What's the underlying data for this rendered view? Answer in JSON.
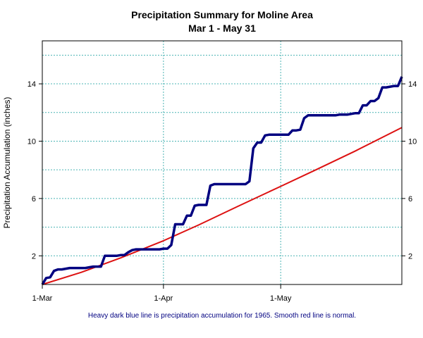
{
  "chart_data": {
    "type": "line",
    "title": "Precipitation Summary for Moline Area",
    "subtitle": "Mar 1 - May 31",
    "ylabel": "Precipitation Accumulation (inches)",
    "xlabel": "",
    "x_ticks": [
      {
        "label": "1-Mar",
        "day": 0
      },
      {
        "label": "1-Apr",
        "day": 31
      },
      {
        "label": "1-May",
        "day": 61
      }
    ],
    "xlim": [
      0,
      92
    ],
    "ylim": [
      0,
      17
    ],
    "y_ticks": [
      2,
      6,
      10,
      14
    ],
    "grid": true,
    "caption": "Heavy dark blue line is precipitation accumulation for 1965. Smooth red line is normal.",
    "colors": {
      "observed": "#000080",
      "normal": "#dd1111",
      "grid": "#4bb4b4",
      "caption": "#000080"
    },
    "series": [
      {
        "key": "observed",
        "x": [
          0,
          1,
          2,
          3,
          4,
          5,
          6,
          7,
          8,
          9,
          10,
          11,
          12,
          13,
          14,
          15,
          16,
          17,
          18,
          19,
          20,
          21,
          22,
          23,
          24,
          25,
          26,
          27,
          28,
          29,
          30,
          31,
          32,
          33,
          34,
          35,
          36,
          37,
          38,
          39,
          40,
          41,
          42,
          43,
          44,
          45,
          46,
          47,
          48,
          49,
          50,
          51,
          52,
          53,
          54,
          55,
          56,
          57,
          58,
          59,
          60,
          61,
          62,
          63,
          64,
          65,
          66,
          67,
          68,
          69,
          70,
          71,
          72,
          73,
          74,
          75,
          76,
          77,
          78,
          79,
          80,
          81,
          82,
          83,
          84,
          85,
          86,
          87,
          88,
          89,
          90,
          91,
          92
        ],
        "values": [
          0.0,
          0.45,
          0.5,
          0.95,
          1.05,
          1.05,
          1.1,
          1.15,
          1.15,
          1.15,
          1.15,
          1.15,
          1.2,
          1.25,
          1.25,
          1.25,
          2.0,
          2.0,
          2.0,
          2.0,
          2.05,
          2.05,
          2.25,
          2.4,
          2.45,
          2.45,
          2.45,
          2.45,
          2.45,
          2.45,
          2.45,
          2.5,
          2.5,
          2.75,
          4.2,
          4.2,
          4.2,
          4.8,
          4.8,
          5.5,
          5.55,
          5.55,
          5.55,
          6.9,
          7.0,
          7.0,
          7.0,
          7.0,
          7.0,
          7.0,
          7.0,
          7.0,
          7.0,
          7.2,
          9.5,
          9.9,
          9.9,
          10.4,
          10.45,
          10.45,
          10.45,
          10.45,
          10.45,
          10.45,
          10.75,
          10.75,
          10.8,
          11.6,
          11.8,
          11.8,
          11.8,
          11.8,
          11.8,
          11.8,
          11.8,
          11.8,
          11.85,
          11.85,
          11.85,
          11.9,
          11.95,
          11.95,
          12.5,
          12.5,
          12.8,
          12.8,
          13.0,
          13.75,
          13.75,
          13.8,
          13.85,
          13.85,
          14.5
        ]
      },
      {
        "key": "normal",
        "x": [
          0,
          10,
          20,
          31,
          40,
          50,
          61,
          70,
          80,
          92
        ],
        "values": [
          0.0,
          0.85,
          1.85,
          3.05,
          4.15,
          5.45,
          6.85,
          8.0,
          9.3,
          10.95
        ]
      }
    ]
  }
}
